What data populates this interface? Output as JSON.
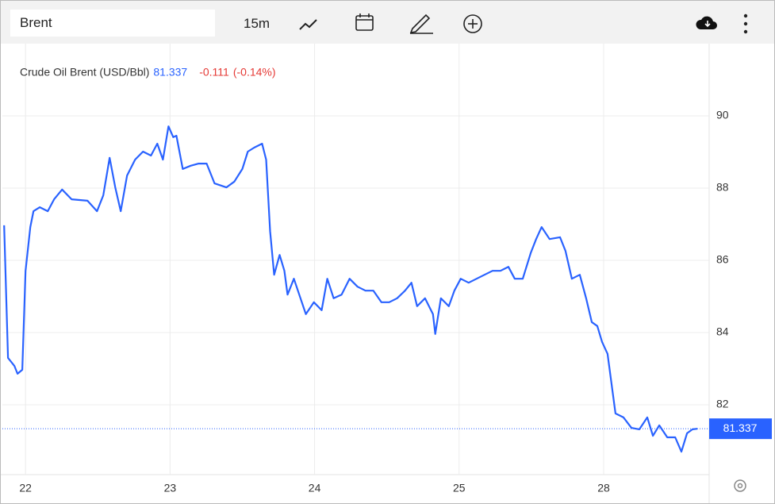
{
  "toolbar": {
    "symbol": "Brent",
    "interval": "15m"
  },
  "chart_data": {
    "type": "line",
    "series": [
      {
        "name": "Crude Oil Brent (USD/Bbl)",
        "color": "#2962ff",
        "x": [
          -0.148,
          -0.121,
          -0.099,
          -0.077,
          -0.055,
          -0.022,
          0,
          0.033,
          0.055,
          0.099,
          0.154,
          0.198,
          0.253,
          0.319,
          0.429,
          0.495,
          0.538,
          0.582,
          0.621,
          0.659,
          0.703,
          0.758,
          0.813,
          0.868,
          0.912,
          0.951,
          0.989,
          1.022,
          1.044,
          1.088,
          1.143,
          1.198,
          1.253,
          1.308,
          1.39,
          1.445,
          1.5,
          1.538,
          1.582,
          1.637,
          1.665,
          1.692,
          1.72,
          1.758,
          1.791,
          1.813,
          1.857,
          1.912,
          1.94,
          1.995,
          2.049,
          2.088,
          2.132,
          2.187,
          2.242,
          2.297,
          2.352,
          2.407,
          2.462,
          2.516,
          2.571,
          2.626,
          2.67,
          2.709,
          2.764,
          2.819,
          2.835,
          2.874,
          2.929,
          2.967,
          3.011,
          3.066,
          3.121,
          3.176,
          3.231,
          3.286,
          3.341,
          3.385,
          3.44,
          3.495,
          3.533,
          3.571,
          3.626,
          3.698,
          3.736,
          3.78,
          3.835,
          3.879,
          3.918,
          3.956,
          3.989,
          4.027,
          4.082,
          4.137,
          4.192,
          4.247,
          4.302,
          4.341,
          4.385,
          4.44,
          4.495,
          4.538,
          4.577,
          4.615,
          4.648
        ],
        "values": [
          86.97,
          83.3,
          83.19,
          83.08,
          82.86,
          82.97,
          85.71,
          86.92,
          87.36,
          87.47,
          87.36,
          87.69,
          87.96,
          87.69,
          87.65,
          87.36,
          87.8,
          88.84,
          88.02,
          87.36,
          88.35,
          88.79,
          89.01,
          88.9,
          89.23,
          88.79,
          89.71,
          89.41,
          89.45,
          88.53,
          88.62,
          88.68,
          88.68,
          88.13,
          88.02,
          88.18,
          88.53,
          89.01,
          89.12,
          89.23,
          88.79,
          86.81,
          85.6,
          86.15,
          85.71,
          85.05,
          85.49,
          84.84,
          84.51,
          84.84,
          84.62,
          85.49,
          84.95,
          85.05,
          85.49,
          85.27,
          85.16,
          85.16,
          84.84,
          84.84,
          84.95,
          85.16,
          85.38,
          84.73,
          84.95,
          84.51,
          83.96,
          84.95,
          84.73,
          85.16,
          85.49,
          85.38,
          85.49,
          85.6,
          85.71,
          85.71,
          85.82,
          85.49,
          85.49,
          86.2,
          86.59,
          86.92,
          86.59,
          86.64,
          86.26,
          85.49,
          85.6,
          84.95,
          84.29,
          84.18,
          83.74,
          83.41,
          81.76,
          81.65,
          81.36,
          81.32,
          81.65,
          81.14,
          81.43,
          81.1,
          81.1,
          80.7,
          81.21,
          81.32,
          81.337
        ]
      }
    ],
    "last": 81.337,
    "change": "-0.111",
    "change_pct": "(-0.14%)",
    "xlim": [
      -0.16,
      4.73
    ],
    "xticks": [
      {
        "value": 0,
        "label": "22"
      },
      {
        "value": 1,
        "label": "23"
      },
      {
        "value": 2,
        "label": "24"
      },
      {
        "value": 3,
        "label": "25"
      },
      {
        "value": 4,
        "label": "28"
      }
    ],
    "ylim": [
      80,
      92
    ],
    "yticks": [
      82,
      84,
      86,
      88,
      90
    ],
    "grid": true
  }
}
